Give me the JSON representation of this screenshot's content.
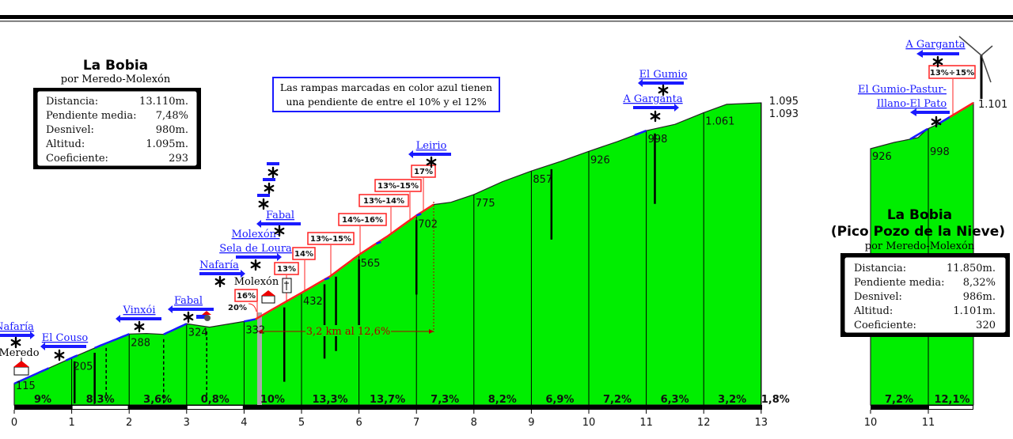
{
  "main_profile": {
    "title": "La Bobia",
    "subtitle": "por Meredo-Molexón",
    "stats": [
      {
        "label": "Distancia:",
        "value": "13.110m."
      },
      {
        "label": "Pendiente media:",
        "value": "7,48%"
      },
      {
        "label": "Desnivel:",
        "value": "980m."
      },
      {
        "label": "Altitud:",
        "value": "1.095m."
      },
      {
        "label": "Coeficiente:",
        "value": "293"
      }
    ],
    "km_ticks": [
      "0",
      "1",
      "2",
      "3",
      "4",
      "5",
      "6",
      "7",
      "8",
      "9",
      "10",
      "11",
      "12",
      "13"
    ],
    "altitudes": [
      {
        "km": 0,
        "label": "115"
      },
      {
        "km": 1,
        "label": "205"
      },
      {
        "km": 2,
        "label": "288"
      },
      {
        "km": 3,
        "label": "324"
      },
      {
        "km": 4,
        "label": "332"
      },
      {
        "km": 5,
        "label": "432"
      },
      {
        "km": 6,
        "label": "565"
      },
      {
        "km": 7,
        "label": "702"
      },
      {
        "km": 8,
        "label": "775"
      },
      {
        "km": 9,
        "label": "857"
      },
      {
        "km": 10,
        "label": "926"
      },
      {
        "km": 11,
        "label": "998"
      },
      {
        "km": 12,
        "label": "1.061"
      },
      {
        "km": 13,
        "label": "1.095"
      },
      {
        "km": 13,
        "label": "1.093"
      }
    ],
    "km_gradients": [
      "9%",
      "8,3%",
      "3,6%",
      "0,8%",
      "10%",
      "13,3%",
      "13,7%",
      "7,3%",
      "8,2%",
      "6,9%",
      "7,2%",
      "6,3%",
      "3,2%",
      "1,8%"
    ],
    "ramps": [
      "20%",
      "16%",
      "13%",
      "14%",
      "13%-15%",
      "14%-16%",
      "13%-14%",
      "13%-15%",
      "17%"
    ],
    "places": [
      "Meredo",
      "Molexón"
    ],
    "junctions": [
      "Nafaría",
      "El Couso",
      "Vinxói",
      "Fabal",
      "Nafaría",
      "Molexón-",
      "Sela de Loura",
      "Fabal",
      "Leirio",
      "A Garganta",
      "El Gumio"
    ],
    "stretch_label": "3,2 km al 12,6%",
    "legend_note": [
      "Las rampas marcadas en color azul tienen",
      "una pendiente de entre el 10% y el 12%"
    ]
  },
  "summit_profile": {
    "title_line1": "La Bobia",
    "title_line2": "(Pico Pozo de la Nieve)",
    "subtitle": "por Meredo-Molexón",
    "stats": [
      {
        "label": "Distancia:",
        "value": "11.850m."
      },
      {
        "label": "Pendiente media:",
        "value": "8,32%"
      },
      {
        "label": "Desnivel:",
        "value": "986m."
      },
      {
        "label": "Altitud:",
        "value": "1.101m."
      },
      {
        "label": "Coeficiente:",
        "value": "320"
      }
    ],
    "km_ticks": [
      "10",
      "11"
    ],
    "altitudes": [
      "926",
      "998",
      "1.101"
    ],
    "km_gradients": [
      "7,2%",
      "12,1%"
    ],
    "ramp": "13%÷15%",
    "junctions": [
      "A Garganta",
      "El Gumio-Pastur-",
      "Illano-El Pato"
    ]
  },
  "colors": {
    "fill": "#00ee00",
    "ramp_red": "#ff2020",
    "ramp_blue": "#1a1aff",
    "note_border": "#1a1aff"
  }
}
